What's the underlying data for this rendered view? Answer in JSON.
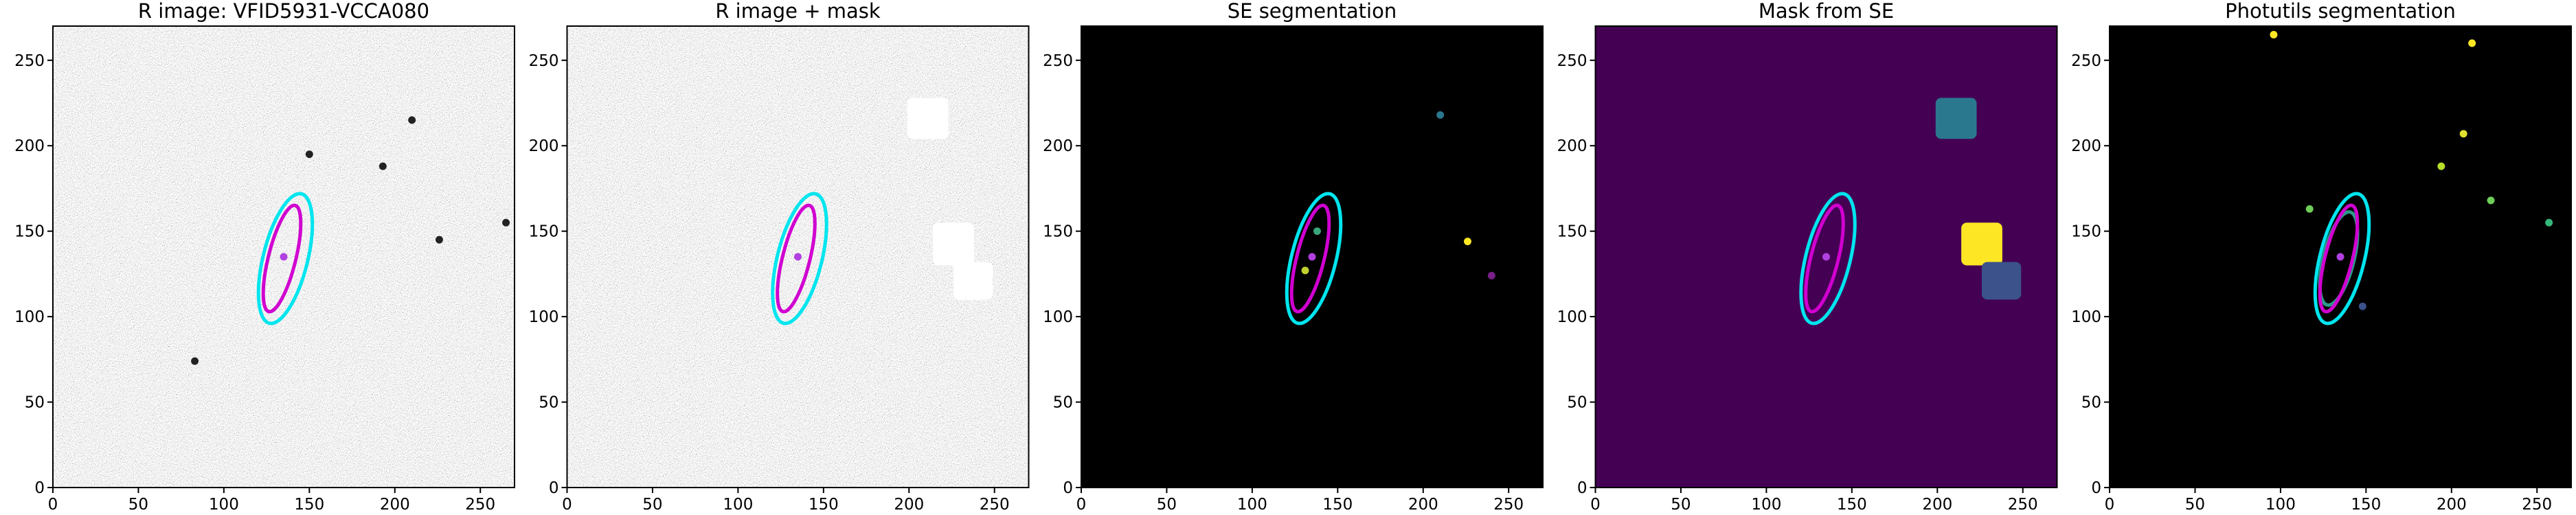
{
  "chart_data": [
    {
      "type": "image",
      "title": "R image: VFID5931-VCCA080",
      "xlim": [
        0,
        270
      ],
      "ylim": [
        0,
        270
      ],
      "xticks": [
        0,
        50,
        100,
        150,
        200,
        250
      ],
      "yticks": [
        0,
        50,
        100,
        150,
        200,
        250
      ],
      "background": "#6e6e6e",
      "noise": true,
      "ellipses": [
        {
          "cx": 136,
          "cy": 134,
          "a": 39,
          "b": 13,
          "angle": 76,
          "color": "#00e5ee"
        },
        {
          "cx": 134,
          "cy": 134,
          "a": 32,
          "b": 8,
          "angle": 76,
          "color": "#d000d0"
        }
      ],
      "rects": [],
      "points": [
        {
          "x": 135,
          "y": 135,
          "color": "#b040e0"
        },
        {
          "x": 210,
          "y": 215,
          "color": "#222222"
        },
        {
          "x": 226,
          "y": 145,
          "color": "#222222"
        },
        {
          "x": 193,
          "y": 188,
          "color": "#222222"
        },
        {
          "x": 150,
          "y": 195,
          "color": "#222222"
        },
        {
          "x": 83,
          "y": 74,
          "color": "#222222"
        },
        {
          "x": 265,
          "y": 155,
          "color": "#222222"
        }
      ]
    },
    {
      "type": "image",
      "title": "R image + mask",
      "xlim": [
        0,
        270
      ],
      "ylim": [
        0,
        270
      ],
      "xticks": [
        0,
        50,
        100,
        150,
        200,
        250
      ],
      "yticks": [
        0,
        50,
        100,
        150,
        200,
        250
      ],
      "background": "#6e6e6e",
      "noise": true,
      "ellipses": [
        {
          "cx": 136,
          "cy": 134,
          "a": 39,
          "b": 13,
          "angle": 76,
          "color": "#00e5ee"
        },
        {
          "cx": 134,
          "cy": 134,
          "a": 32,
          "b": 8,
          "angle": 76,
          "color": "#d000d0"
        }
      ],
      "rects": [
        {
          "x0": 199,
          "x1": 223,
          "y0": 204,
          "y1": 228,
          "color": "#ffffff"
        },
        {
          "x0": 214,
          "x1": 238,
          "y0": 130,
          "y1": 155,
          "color": "#ffffff"
        },
        {
          "x0": 226,
          "x1": 249,
          "y0": 110,
          "y1": 132,
          "color": "#ffffff"
        }
      ],
      "points": [
        {
          "x": 135,
          "y": 135,
          "color": "#b040e0"
        }
      ]
    },
    {
      "type": "image",
      "title": "SE segmentation",
      "xlim": [
        0,
        270
      ],
      "ylim": [
        0,
        270
      ],
      "xticks": [
        0,
        50,
        100,
        150,
        200,
        250
      ],
      "yticks": [
        0,
        50,
        100,
        150,
        200,
        250
      ],
      "background": "#000000",
      "noise": false,
      "ellipses": [
        {
          "cx": 136,
          "cy": 134,
          "a": 39,
          "b": 13,
          "angle": 76,
          "color": "#00e5ee"
        },
        {
          "cx": 134,
          "cy": 134,
          "a": 32,
          "b": 8,
          "angle": 76,
          "color": "#d000d0"
        }
      ],
      "rects": [],
      "points": [
        {
          "x": 138,
          "y": 150,
          "color": "#3aa67a"
        },
        {
          "x": 131,
          "y": 127,
          "color": "#c0d030"
        },
        {
          "x": 226,
          "y": 144,
          "color": "#fde725"
        },
        {
          "x": 210,
          "y": 218,
          "color": "#2a788e"
        },
        {
          "x": 240,
          "y": 124,
          "color": "#7a1f8a"
        },
        {
          "x": 135,
          "y": 135,
          "color": "#b040e0"
        }
      ]
    },
    {
      "type": "image",
      "title": "Mask from SE",
      "xlim": [
        0,
        270
      ],
      "ylim": [
        0,
        270
      ],
      "xticks": [
        0,
        50,
        100,
        150,
        200,
        250
      ],
      "yticks": [
        0,
        50,
        100,
        150,
        200,
        250
      ],
      "background": "#440154",
      "noise": false,
      "ellipses": [
        {
          "cx": 136,
          "cy": 134,
          "a": 39,
          "b": 13,
          "angle": 76,
          "color": "#00e5ee"
        },
        {
          "cx": 134,
          "cy": 134,
          "a": 32,
          "b": 8,
          "angle": 76,
          "color": "#d000d0"
        }
      ],
      "rects": [
        {
          "x0": 199,
          "x1": 223,
          "y0": 204,
          "y1": 228,
          "color": "#2a788e"
        },
        {
          "x0": 214,
          "x1": 238,
          "y0": 130,
          "y1": 155,
          "color": "#fde725"
        },
        {
          "x0": 226,
          "x1": 249,
          "y0": 110,
          "y1": 132,
          "color": "#3b528b"
        }
      ],
      "points": [
        {
          "x": 135,
          "y": 135,
          "color": "#b040e0"
        }
      ]
    },
    {
      "type": "image",
      "title": "Photutils segmentation",
      "xlim": [
        0,
        270
      ],
      "ylim": [
        0,
        270
      ],
      "xticks": [
        0,
        50,
        100,
        150,
        200,
        250
      ],
      "yticks": [
        0,
        50,
        100,
        150,
        200,
        250
      ],
      "background": "#000000",
      "noise": false,
      "ellipses": [
        {
          "cx": 134,
          "cy": 134,
          "a": 28,
          "b": 9,
          "angle": 76,
          "color": "#2a9a8a"
        },
        {
          "cx": 136,
          "cy": 134,
          "a": 39,
          "b": 13,
          "angle": 76,
          "color": "#00e5ee"
        },
        {
          "cx": 134,
          "cy": 134,
          "a": 32,
          "b": 8,
          "angle": 76,
          "color": "#d000d0"
        }
      ],
      "rects": [],
      "points": [
        {
          "x": 96,
          "y": 265,
          "color": "#fde725"
        },
        {
          "x": 212,
          "y": 260,
          "color": "#fde725"
        },
        {
          "x": 207,
          "y": 207,
          "color": "#e0e030"
        },
        {
          "x": 194,
          "y": 188,
          "color": "#b5de2b"
        },
        {
          "x": 223,
          "y": 168,
          "color": "#6ece58"
        },
        {
          "x": 117,
          "y": 163,
          "color": "#6ece58"
        },
        {
          "x": 257,
          "y": 155,
          "color": "#35b779"
        },
        {
          "x": 148,
          "y": 106,
          "color": "#3b528b"
        },
        {
          "x": 135,
          "y": 135,
          "color": "#b040e0"
        }
      ]
    }
  ]
}
